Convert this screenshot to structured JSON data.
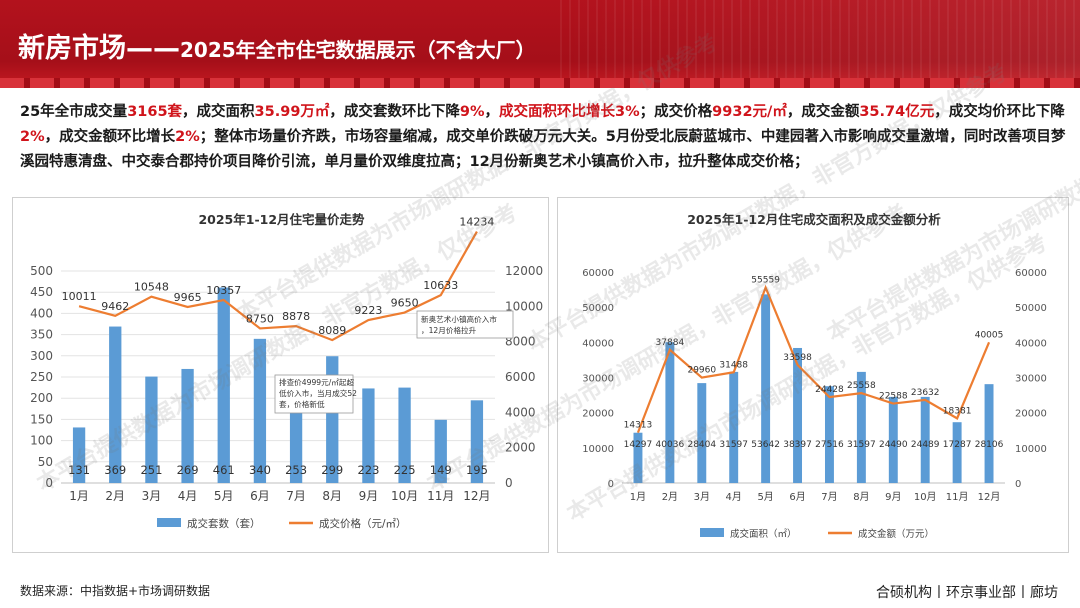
{
  "header": {
    "title_main": "新房市场——",
    "title_sub": "2025年全市住宅数据展示（不含大厂）"
  },
  "summary": [
    {
      "t": "25年全市成交量",
      "h": false
    },
    {
      "t": "3165套",
      "h": true
    },
    {
      "t": "，成交面积",
      "h": false
    },
    {
      "t": "35.99万㎡",
      "h": true
    },
    {
      "t": "，成交套数环比下降",
      "h": false
    },
    {
      "t": "9%",
      "h": true
    },
    {
      "t": "，",
      "h": false
    },
    {
      "t": "成交面积环比增长3%",
      "h": true
    },
    {
      "t": "；成交价格",
      "h": false
    },
    {
      "t": "9932元/㎡",
      "h": true
    },
    {
      "t": "，成交金额",
      "h": false
    },
    {
      "t": "35.74亿元",
      "h": true
    },
    {
      "t": "，成交均价环比下降",
      "h": false
    },
    {
      "t": "2%",
      "h": true
    },
    {
      "t": "，成交金额环比增长",
      "h": false
    },
    {
      "t": "2%",
      "h": true
    },
    {
      "t": "；整体市场量价齐跌，市场容量缩减，成交单价跌破万元大关。5月份受北辰蔚蓝城市、中建园著入市影响成交量激增，同时改善项目梦溪园特惠清盘、中交泰合郡持价项目降价引流，单月量价双维度拉高；12月份新奥艺术小镇高价入市，拉升整体成交价格；",
      "h": false
    }
  ],
  "colors": {
    "bar": "#5b9bd5",
    "line": "#ed7d31",
    "accent": "#d0141b"
  },
  "chart_data": [
    {
      "type": "bar",
      "title": "2025年1-12月住宅量价走势",
      "categories": [
        "1月",
        "2月",
        "3月",
        "4月",
        "5月",
        "6月",
        "7月",
        "8月",
        "9月",
        "10月",
        "11月",
        "12月"
      ],
      "ylim_left": [
        0,
        500
      ],
      "yticks_left": [
        0,
        50,
        100,
        150,
        200,
        250,
        300,
        350,
        400,
        450,
        500
      ],
      "ylim_right": [
        0,
        12000
      ],
      "yticks_right": [
        0,
        2000,
        4000,
        6000,
        8000,
        10000,
        12000
      ],
      "series": [
        {
          "name": "成交套数（套）",
          "kind": "bar",
          "axis": "left",
          "values": [
            131,
            369,
            251,
            269,
            461,
            340,
            253,
            299,
            223,
            225,
            149,
            195
          ]
        },
        {
          "name": "成交价格（元/㎡）",
          "kind": "line",
          "axis": "right",
          "values": [
            10011,
            9462,
            10548,
            9965,
            10357,
            8750,
            8878,
            8089,
            9223,
            9650,
            10633,
            14234
          ]
        }
      ],
      "annotations": [
        {
          "text": "排查价4999元/㎡起超低价入市，当月成交52套，价格新低"
        },
        {
          "text": "新奥艺术小镇高价入市，12月价格拉升"
        }
      ],
      "grid": true,
      "legend": "bottom"
    },
    {
      "type": "bar",
      "title": "2025年1-12月住宅成交面积及成交金额分析",
      "categories": [
        "1月",
        "2月",
        "3月",
        "4月",
        "5月",
        "6月",
        "7月",
        "8月",
        "9月",
        "10月",
        "11月",
        "12月"
      ],
      "ylim_left": [
        0,
        60000
      ],
      "yticks_left": [
        0,
        10000,
        20000,
        30000,
        40000,
        50000,
        60000
      ],
      "ylim_right": [
        0,
        60000
      ],
      "yticks_right": [
        0,
        10000,
        20000,
        30000,
        40000,
        50000,
        60000
      ],
      "series": [
        {
          "name": "成交面积（㎡）",
          "kind": "bar",
          "axis": "left",
          "values": [
            14297,
            40036,
            28404,
            31597,
            53642,
            38397,
            27516,
            31597,
            24490,
            24489,
            17287,
            28106
          ]
        },
        {
          "name": "成交金额（万元）",
          "kind": "line",
          "axis": "right",
          "values": [
            14313,
            37884,
            29960,
            31488,
            55559,
            33598,
            24428,
            25558,
            22588,
            23632,
            18381,
            40005
          ]
        }
      ],
      "grid": false,
      "legend": "bottom"
    }
  ],
  "watermark": "本平台提供数据为市场调研数据，非官方数据，仅供参考",
  "footer": {
    "source": "数据来源：中指数据+市场调研数据",
    "org": "合硕机构丨环京事业部丨廊坊"
  }
}
